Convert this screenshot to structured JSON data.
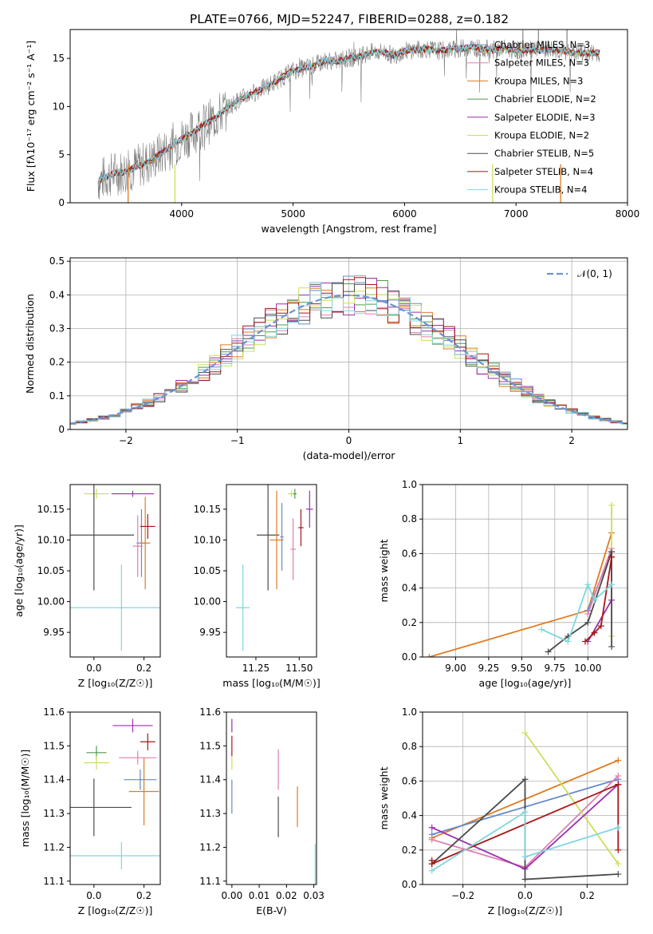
{
  "figure": {
    "title": "PLATE=0766, MJD=52247, FIBERID=0288, z=0.182"
  },
  "colors": {
    "chabrier_miles": "#6688cc",
    "salpeter_miles": "#e07fb0",
    "kroupa_miles": "#e07b22",
    "chabrier_elodie": "#4f9a4f",
    "salpeter_elodie": "#9a2fb0",
    "kroupa_elodie": "#c8e05a",
    "chabrier_stelib": "#4b4b4b",
    "salpeter_stelib": "#aa1515",
    "kroupa_stelib": "#7fd6de"
  },
  "chart_data": [
    {
      "id": "spectrum",
      "type": "line",
      "title": "PLATE=0766, MJD=52247, FIBERID=0288, z=0.182",
      "xlabel": "wavelength [Angstrom, rest frame]",
      "ylabel": "Flux [fλ10⁻¹⁷ erg cm⁻² s⁻¹ A⁻¹]",
      "xlim": [
        3000,
        8000
      ],
      "ylim": [
        0,
        18
      ],
      "xticks": [
        4000,
        5000,
        6000,
        7000,
        8000
      ],
      "yticks": [
        0,
        5,
        10,
        15
      ],
      "legend_position": "top-right",
      "legend": [
        "Chabrier MILES, N_SSP=3",
        "Salpeter MILES, N_SSP=3",
        "Kroupa MILES, N_SSP=3",
        "Chabrier ELODIE, N_SSP=2",
        "Salpeter ELODIE, N_SSP=3",
        "Kroupa ELODIE, N_SSP=2",
        "Chabrier STELIB, N_SSP=5",
        "Salpeter STELIB, N_SSP=4",
        "Kroupa STELIB, N_SSP=4"
      ],
      "continuum_x": [
        3250,
        3400,
        3500,
        3600,
        3700,
        3800,
        3900,
        4000,
        4100,
        4200,
        4300,
        4400,
        4500,
        4600,
        4700,
        4800,
        4900,
        5000,
        5100,
        5200,
        5300,
        5400,
        5500,
        5600,
        5700,
        5800,
        5900,
        6000,
        6100,
        6200,
        6300,
        6400,
        6500,
        6600,
        6700,
        6800,
        6900,
        7000,
        7100,
        7200,
        7300,
        7400,
        7500,
        7600,
        7750
      ],
      "continuum_y": [
        2.3,
        3.1,
        3.2,
        3.8,
        4.2,
        5.0,
        5.8,
        6.6,
        7.3,
        8.1,
        8.8,
        9.8,
        10.6,
        11.2,
        11.7,
        12.3,
        13.0,
        13.7,
        14.0,
        14.3,
        14.8,
        14.7,
        15.0,
        15.2,
        15.6,
        15.7,
        15.3,
        15.8,
        15.9,
        16.0,
        15.8,
        15.9,
        16.0,
        16.2,
        16.0,
        15.9,
        16.0,
        15.8,
        15.9,
        15.8,
        16.0,
        15.8,
        15.6,
        15.5,
        15.6
      ]
    },
    {
      "id": "residuals",
      "type": "area",
      "xlabel": "(data-model)/error",
      "ylabel": "Normed distribution",
      "xlim": [
        -2.5,
        2.5
      ],
      "ylim": [
        0,
        0.51
      ],
      "xticks": [
        -2,
        -1,
        0,
        1,
        2
      ],
      "yticks": [
        0.0,
        0.1,
        0.2,
        0.3,
        0.4,
        0.5
      ],
      "grid": true,
      "legend_position": "top-right",
      "legend": [
        "𝒩(0, 1)"
      ],
      "bin_width": 0.1
    },
    {
      "id": "age_vs_Z",
      "type": "scatter",
      "xlabel": "Z [log₁₀(Z/Z☉)]",
      "ylabel": "age  [log₁₀(age/yr)]",
      "xlim": [
        -0.095,
        0.265
      ],
      "ylim": [
        9.91,
        10.19
      ],
      "xticks": [
        0.0,
        0.2
      ],
      "yticks": [
        9.95,
        10.0,
        10.05,
        10.1,
        10.15
      ],
      "points": [
        {
          "model": "kroupa_elodie",
          "x": 0.01,
          "xerr": 0.05,
          "y": 10.175,
          "yerr": 0.008
        },
        {
          "model": "salpeter_elodie",
          "x": 0.155,
          "xerr": 0.085,
          "y": 10.175,
          "yerr": 0.005
        },
        {
          "model": "chabrier_stelib",
          "x": 0.0,
          "xerr": 0.16,
          "y": 10.108,
          "yerr": 0.09
        },
        {
          "model": "chabrier_miles",
          "x": 0.19,
          "xerr": 0.02,
          "y": 10.095,
          "yerr": 0.055
        },
        {
          "model": "salpeter_miles",
          "x": 0.175,
          "xerr": 0.02,
          "y": 10.09,
          "yerr": 0.05
        },
        {
          "model": "kroupa_miles",
          "x": 0.205,
          "xerr": 0.02,
          "y": 10.095,
          "yerr": 0.075
        },
        {
          "model": "salpeter_stelib",
          "x": 0.215,
          "xerr": 0.03,
          "y": 10.122,
          "yerr": 0.02
        },
        {
          "model": "kroupa_stelib",
          "x": 0.11,
          "xerr": 0.24,
          "y": 9.99,
          "yerr": 0.07
        }
      ]
    },
    {
      "id": "age_vs_mass",
      "type": "scatter",
      "xlabel": "mass [log₁₀(M/M☉)]",
      "ylabel": "",
      "xlim": [
        11.08,
        11.6
      ],
      "ylim": [
        9.91,
        10.19
      ],
      "xticks": [
        11.25,
        11.5
      ],
      "yticks": [
        9.95,
        10.0,
        10.05,
        10.1,
        10.15
      ],
      "points": [
        {
          "model": "kroupa_elodie",
          "x": 11.455,
          "xerr": 0.02,
          "y": 10.175,
          "yerr": 0.005
        },
        {
          "model": "chabrier_elodie",
          "x": 11.475,
          "xerr": 0.01,
          "y": 10.175,
          "yerr": 0.008
        },
        {
          "model": "salpeter_elodie",
          "x": 11.56,
          "xerr": 0.02,
          "y": 10.15,
          "yerr": 0.03
        },
        {
          "model": "chabrier_stelib",
          "x": 11.32,
          "xerr": 0.065,
          "y": 10.108,
          "yerr": 0.09
        },
        {
          "model": "kroupa_miles",
          "x": 11.37,
          "xerr": 0.04,
          "y": 10.1,
          "yerr": 0.08
        },
        {
          "model": "chabrier_miles",
          "x": 11.4,
          "xerr": 0.01,
          "y": 10.105,
          "yerr": 0.055
        },
        {
          "model": "salpeter_miles",
          "x": 11.465,
          "xerr": 0.015,
          "y": 10.085,
          "yerr": 0.05
        },
        {
          "model": "salpeter_stelib",
          "x": 11.51,
          "xerr": 0.015,
          "y": 10.12,
          "yerr": 0.03
        },
        {
          "model": "kroupa_stelib",
          "x": 11.175,
          "xerr": 0.04,
          "y": 9.99,
          "yerr": 0.07
        }
      ]
    },
    {
      "id": "weight_vs_age",
      "type": "line",
      "xlabel": "age  [log₁₀(age/yr)]",
      "ylabel": "mass weight",
      "xlim": [
        8.75,
        10.3
      ],
      "ylim": [
        0,
        1
      ],
      "xticks": [
        9.0,
        9.25,
        9.5,
        9.75,
        10.0
      ],
      "yticks": [
        0.0,
        0.2,
        0.4,
        0.6,
        0.8,
        1.0
      ],
      "grid": true,
      "series": [
        {
          "model": "kroupa_miles",
          "x": [
            8.8,
            10.0,
            10.18
          ],
          "y": [
            0.0,
            0.27,
            0.72
          ]
        },
        {
          "model": "chabrier_miles",
          "x": [
            10.0,
            10.18
          ],
          "y": [
            0.27,
            0.61
          ]
        },
        {
          "model": "salpeter_miles",
          "x": [
            10.0,
            10.18
          ],
          "y": [
            0.25,
            0.63
          ]
        },
        {
          "model": "kroupa_elodie",
          "x": [
            10.18,
            10.18
          ],
          "y": [
            0.12,
            0.88
          ]
        },
        {
          "model": "salpeter_elodie",
          "x": [
            10.0,
            10.18,
            10.18
          ],
          "y": [
            0.09,
            0.33,
            0.58
          ]
        },
        {
          "model": "chabrier_stelib",
          "x": [
            9.7,
            9.85,
            10.0,
            10.18,
            10.18
          ],
          "y": [
            0.03,
            0.12,
            0.2,
            0.61,
            0.06
          ]
        },
        {
          "model": "salpeter_stelib",
          "x": [
            9.98,
            10.05,
            10.1,
            10.18
          ],
          "y": [
            0.09,
            0.14,
            0.18,
            0.58
          ]
        },
        {
          "model": "kroupa_stelib",
          "x": [
            9.65,
            9.85,
            10.0,
            10.05,
            10.18
          ],
          "y": [
            0.16,
            0.09,
            0.42,
            0.33,
            0.42
          ]
        }
      ]
    },
    {
      "id": "mass_vs_Z",
      "type": "scatter",
      "xlabel": "Z [log₁₀(Z/Z☉)]",
      "ylabel": "mass [log₁₀(M/M☉)]",
      "xlim": [
        -0.095,
        0.265
      ],
      "ylim": [
        11.09,
        11.6
      ],
      "xticks": [
        0.0,
        0.2
      ],
      "yticks": [
        11.1,
        11.2,
        11.3,
        11.4,
        11.5,
        11.6
      ],
      "points": [
        {
          "model": "salpeter_elodie",
          "x": 0.155,
          "xerr": 0.08,
          "y": 11.56,
          "yerr": 0.02
        },
        {
          "model": "salpeter_stelib",
          "x": 0.215,
          "xerr": 0.03,
          "y": 11.512,
          "yerr": 0.025
        },
        {
          "model": "chabrier_elodie",
          "x": 0.01,
          "xerr": 0.04,
          "y": 11.48,
          "yerr": 0.02
        },
        {
          "model": "salpeter_miles",
          "x": 0.175,
          "xerr": 0.075,
          "y": 11.465,
          "yerr": 0.02
        },
        {
          "model": "kroupa_elodie",
          "x": 0.01,
          "xerr": 0.05,
          "y": 11.45,
          "yerr": 0.02
        },
        {
          "model": "chabrier_miles",
          "x": 0.185,
          "xerr": 0.065,
          "y": 11.4,
          "yerr": 0.03
        },
        {
          "model": "kroupa_miles",
          "x": 0.2,
          "xerr": 0.06,
          "y": 11.365,
          "yerr": 0.1
        },
        {
          "model": "chabrier_stelib",
          "x": 0.0,
          "xerr": 0.15,
          "y": 11.318,
          "yerr": 0.085
        },
        {
          "model": "kroupa_stelib",
          "x": 0.11,
          "xerr": 0.24,
          "y": 11.175,
          "yerr": 0.04
        }
      ]
    },
    {
      "id": "mass_vs_ebv",
      "type": "scatter",
      "xlabel": "E(B-V)",
      "ylabel": "",
      "xlim": [
        -0.002,
        0.031
      ],
      "ylim": [
        11.09,
        11.6
      ],
      "xticks": [
        0.0,
        0.01,
        0.02,
        0.03
      ],
      "yticks": [
        11.1,
        11.2,
        11.3,
        11.4,
        11.5,
        11.6
      ],
      "points": [
        {
          "model": "salpeter_elodie",
          "x": 0.0,
          "y": 11.56,
          "yerr": 0.02
        },
        {
          "model": "salpeter_stelib",
          "x": 0.0,
          "y": 11.5,
          "yerr": 0.03
        },
        {
          "model": "kroupa_elodie",
          "x": 0.0,
          "y": 11.45,
          "yerr": 0.02
        },
        {
          "model": "chabrier_miles",
          "x": 0.0,
          "y": 11.35,
          "yerr": 0.05
        },
        {
          "model": "salpeter_miles",
          "x": 0.017,
          "y": 11.43,
          "yerr": 0.06
        },
        {
          "model": "chabrier_stelib",
          "x": 0.017,
          "y": 11.29,
          "yerr": 0.06
        },
        {
          "model": "kroupa_miles",
          "x": 0.024,
          "y": 11.32,
          "yerr": 0.06
        },
        {
          "model": "kroupa_stelib",
          "x": 0.0305,
          "y": 11.14,
          "yerr": 0.07
        }
      ]
    },
    {
      "id": "weight_vs_Z",
      "type": "line",
      "xlabel": "Z [log₁₀(Z/Z☉)]",
      "ylabel": "mass weight",
      "xlim": [
        -0.33,
        0.33
      ],
      "ylim": [
        0,
        1
      ],
      "xticks": [
        -0.2,
        0.0,
        0.2
      ],
      "yticks": [
        0.0,
        0.2,
        0.4,
        0.6,
        0.8,
        1.0
      ],
      "grid": true,
      "series": [
        {
          "model": "kroupa_miles",
          "x": [
            -0.3,
            0.3
          ],
          "y": [
            0.27,
            0.72
          ]
        },
        {
          "model": "chabrier_miles",
          "x": [
            -0.3,
            0.3
          ],
          "y": [
            0.29,
            0.61
          ]
        },
        {
          "model": "salpeter_miles",
          "x": [
            -0.3,
            0.0,
            0.3
          ],
          "y": [
            0.26,
            0.1,
            0.63
          ]
        },
        {
          "model": "kroupa_elodie",
          "x": [
            0.0,
            0.3
          ],
          "y": [
            0.88,
            0.12
          ]
        },
        {
          "model": "salpeter_elodie",
          "x": [
            -0.3,
            0.0,
            0.3
          ],
          "y": [
            0.33,
            0.09,
            0.58
          ]
        },
        {
          "model": "chabrier_stelib",
          "x": [
            -0.3,
            0.0,
            0.0,
            0.3
          ],
          "y": [
            0.12,
            0.61,
            0.03,
            0.06
          ]
        },
        {
          "model": "salpeter_stelib",
          "x": [
            -0.3,
            -0.3,
            0.3,
            0.3
          ],
          "y": [
            0.14,
            0.12,
            0.58,
            0.2
          ]
        },
        {
          "model": "kroupa_stelib",
          "x": [
            -0.3,
            0.0,
            0.0,
            0.3
          ],
          "y": [
            0.08,
            0.42,
            0.16,
            0.33
          ]
        }
      ]
    }
  ]
}
